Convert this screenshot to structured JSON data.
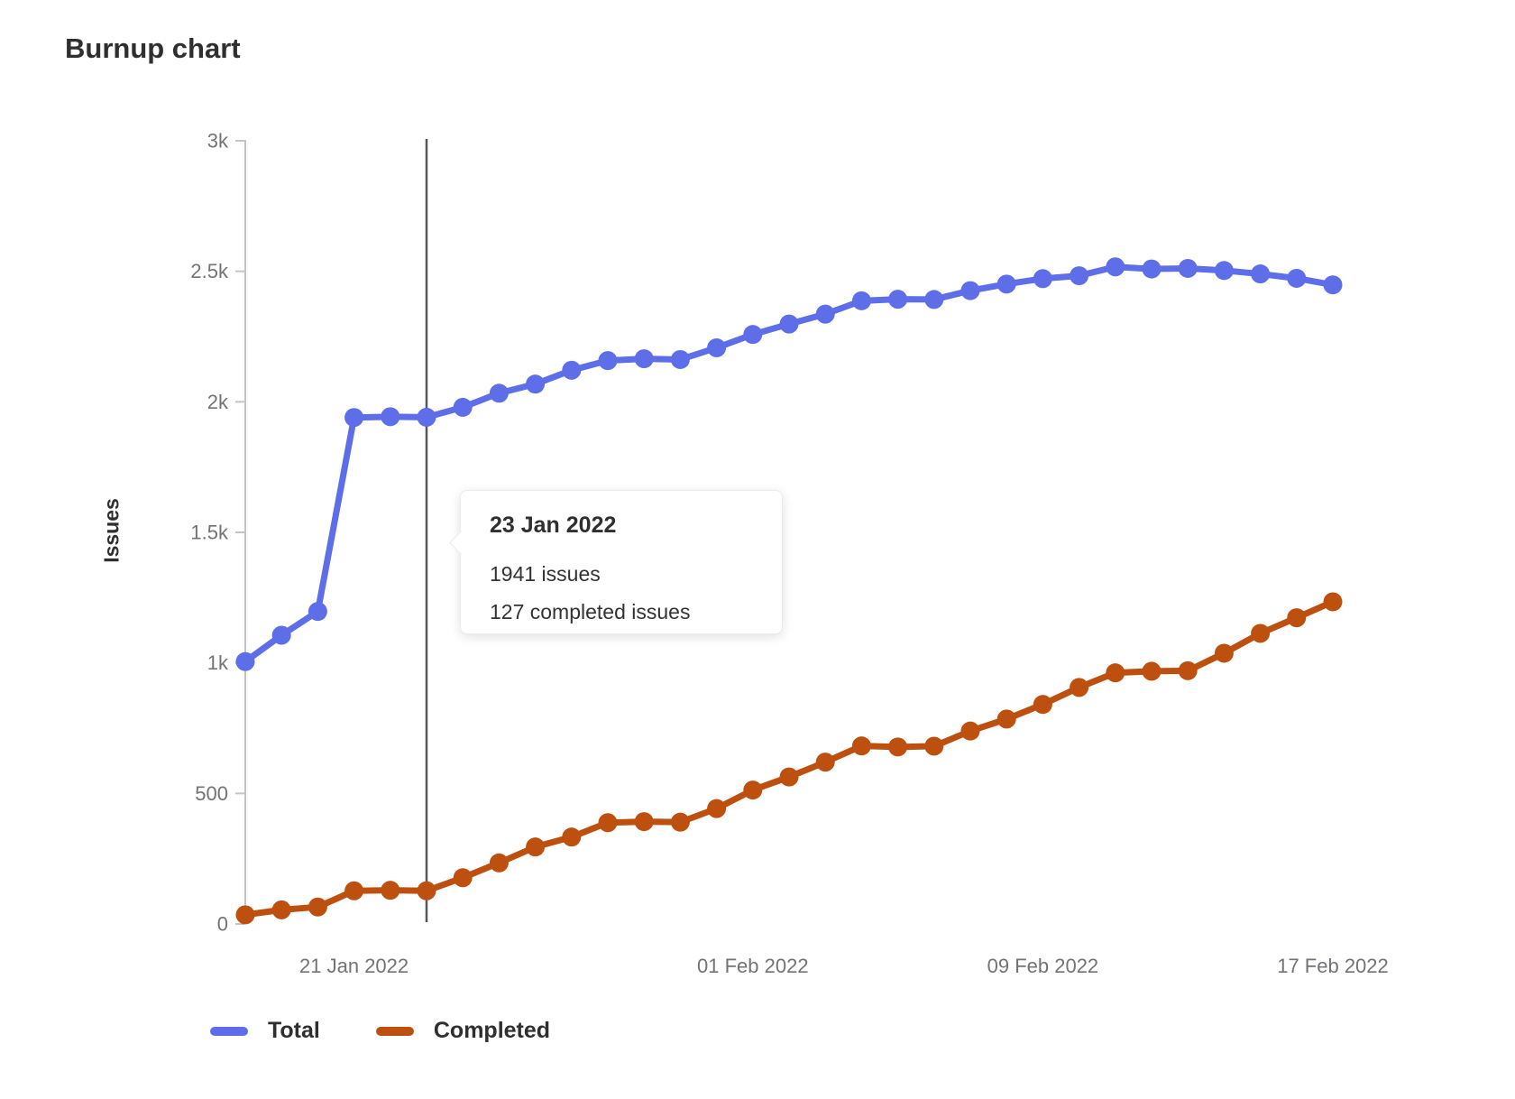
{
  "page": {
    "title": "Burnup chart"
  },
  "chart": {
    "y_axis_label": "Issues"
  },
  "chart_data": {
    "type": "line",
    "title": "Burnup chart",
    "xlabel": "",
    "ylabel": "Issues",
    "ylim": [
      0,
      3000
    ],
    "grid": false,
    "legend_position": "bottom-left",
    "x": [
      "18 Jan 2022",
      "19 Jan 2022",
      "20 Jan 2022",
      "21 Jan 2022",
      "22 Jan 2022",
      "23 Jan 2022",
      "24 Jan 2022",
      "25 Jan 2022",
      "26 Jan 2022",
      "27 Jan 2022",
      "28 Jan 2022",
      "29 Jan 2022",
      "30 Jan 2022",
      "31 Jan 2022",
      "01 Feb 2022",
      "02 Feb 2022",
      "03 Feb 2022",
      "04 Feb 2022",
      "05 Feb 2022",
      "06 Feb 2022",
      "07 Feb 2022",
      "08 Feb 2022",
      "09 Feb 2022",
      "10 Feb 2022",
      "11 Feb 2022",
      "12 Feb 2022",
      "13 Feb 2022",
      "14 Feb 2022",
      "15 Feb 2022",
      "16 Feb 2022",
      "17 Feb 2022"
    ],
    "y_tick_values": [
      0,
      500,
      1000,
      1500,
      2000,
      2500,
      3000
    ],
    "y_tick_labels": [
      "0",
      "500",
      "1k",
      "1.5k",
      "2k",
      "2.5k",
      "3k"
    ],
    "x_tick_indices": [
      3,
      14,
      22,
      30
    ],
    "x_tick_labels": [
      "21 Jan 2022",
      "01 Feb 2022",
      "09 Feb 2022",
      "17 Feb 2022"
    ],
    "selected_index": 5,
    "series": [
      {
        "name": "Total",
        "color": "#5d6ee8",
        "values": [
          1005,
          1106,
          1197,
          1940,
          1943,
          1941,
          1979,
          2033,
          2068,
          2121,
          2158,
          2165,
          2162,
          2207,
          2258,
          2298,
          2336,
          2387,
          2393,
          2392,
          2426,
          2451,
          2472,
          2483,
          2517,
          2509,
          2511,
          2503,
          2490,
          2473,
          2448
        ]
      },
      {
        "name": "Completed",
        "color": "#be500f",
        "values": [
          35,
          54,
          65,
          127,
          129,
          127,
          177,
          234,
          295,
          333,
          388,
          392,
          390,
          442,
          513,
          563,
          620,
          682,
          678,
          681,
          739,
          785,
          841,
          906,
          962,
          968,
          970,
          1037,
          1113,
          1173,
          1234
        ]
      }
    ]
  },
  "tooltip": {
    "date": "23 Jan 2022",
    "total": "1941 issues",
    "completed": "127 completed issues"
  },
  "legend": [
    {
      "label": "Total",
      "color": "#5d6ee8"
    },
    {
      "label": "Completed",
      "color": "#be500f"
    }
  ],
  "colors": {
    "axis_line": "#c2c4c8",
    "tick_text": "#737278",
    "marker_line": "#54565b",
    "title_text": "#2f2f2f"
  }
}
